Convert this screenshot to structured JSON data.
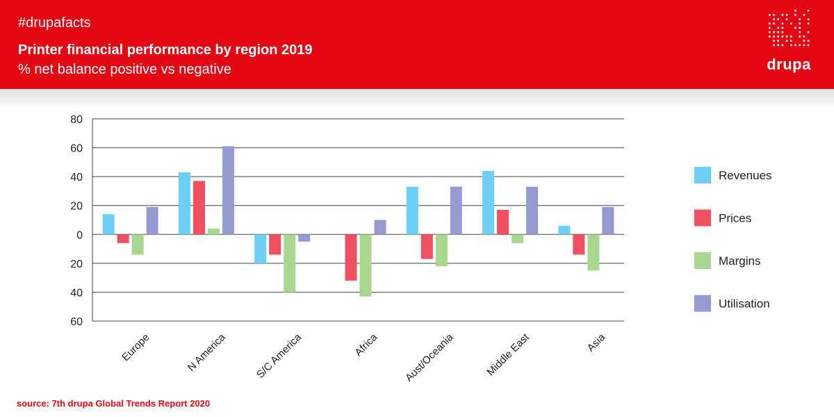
{
  "header": {
    "hashtag": "#drupafacts",
    "title": "Printer financial performance by region 2019",
    "subtitle": "% net balance positive vs negative",
    "logo_text": "drupa",
    "brand_color": "#e30613"
  },
  "footer": {
    "source": "source: 7th drupa Global Trends Report 2020"
  },
  "chart_data": {
    "type": "bar",
    "categories": [
      "Europe",
      "N America",
      "S/C America",
      "Africa",
      "Aust/Oceania",
      "Middle East",
      "Asia"
    ],
    "series": [
      {
        "name": "Revenues",
        "color": "#6dd0f7",
        "values": [
          14,
          43,
          -20,
          0,
          33,
          44,
          6
        ]
      },
      {
        "name": "Prices",
        "color": "#f0505f",
        "values": [
          -6,
          37,
          -14,
          -32,
          -17,
          17,
          -14
        ]
      },
      {
        "name": "Margins",
        "color": "#a8d890",
        "values": [
          -14,
          4,
          -40,
          -43,
          -22,
          -6,
          -25
        ]
      },
      {
        "name": "Utilisation",
        "color": "#959bd0",
        "values": [
          19,
          61,
          -5,
          10,
          33,
          33,
          19
        ]
      }
    ],
    "ylim": [
      -60,
      80
    ],
    "yticks": [
      80,
      60,
      40,
      20,
      0,
      -20,
      -40,
      -60
    ],
    "ytick_labels": [
      "80",
      "60",
      "40",
      "20",
      "0",
      "20",
      "40",
      "60"
    ],
    "grid": true,
    "legend_position": "right"
  }
}
